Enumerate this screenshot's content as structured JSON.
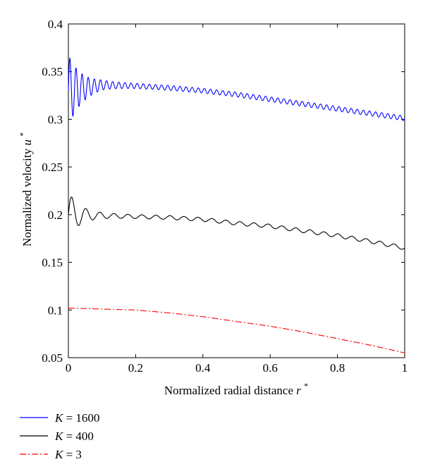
{
  "chart_data": {
    "type": "line",
    "xlabel": "Normalized radial distance",
    "xlabel_var": "r",
    "xlabel_sup": "*",
    "ylabel": "Normalized velocity",
    "ylabel_var": "u",
    "ylabel_sup": "*",
    "xlim": [
      0,
      1
    ],
    "ylim": [
      0.05,
      0.4
    ],
    "xticks": [
      "0",
      "0.2",
      "0.4",
      "0.6",
      "0.8",
      "1"
    ],
    "yticks": [
      "0.05",
      "0.1",
      "0.15",
      "0.2",
      "0.25",
      "0.3",
      "0.35",
      "0.4"
    ],
    "grid": false,
    "legend_position": "bottom-left, below plot",
    "series": [
      {
        "name": "K = 1600",
        "legend_var": "K",
        "legend_value": "= 1600",
        "color": "#0000ff",
        "style": "solid",
        "x": [
          0,
          0.1,
          0.2,
          0.3,
          0.4,
          0.5,
          0.6,
          0.7,
          0.8,
          0.9,
          1.0
        ],
        "values": [
          0.33,
          0.336,
          0.335,
          0.333,
          0.33,
          0.326,
          0.321,
          0.316,
          0.311,
          0.306,
          0.301
        ],
        "oscillation": {
          "base_amp": 0.0025,
          "initial_amp": 0.035,
          "decay": 0.04,
          "freq": 1100
        }
      },
      {
        "name": "K = 400",
        "legend_var": "K",
        "legend_value": "= 400",
        "color": "#000000",
        "style": "solid",
        "x": [
          0,
          0.1,
          0.2,
          0.3,
          0.4,
          0.5,
          0.6,
          0.7,
          0.8,
          0.9,
          1.0
        ],
        "values": [
          0.2,
          0.199,
          0.198,
          0.197,
          0.195,
          0.191,
          0.188,
          0.183,
          0.178,
          0.172,
          0.165
        ],
        "oscillation": {
          "base_amp": 0.002,
          "initial_amp": 0.022,
          "decay": 0.035,
          "freq": 480
        }
      },
      {
        "name": "K = 3",
        "legend_var": "K",
        "legend_value": "= 3",
        "color": "#ff0000",
        "style": "dashdot",
        "x": [
          0,
          0.1,
          0.2,
          0.3,
          0.4,
          0.5,
          0.6,
          0.7,
          0.8,
          0.9,
          1.0
        ],
        "values": [
          0.102,
          0.101,
          0.1,
          0.097,
          0.093,
          0.088,
          0.083,
          0.077,
          0.07,
          0.063,
          0.055
        ]
      }
    ]
  }
}
